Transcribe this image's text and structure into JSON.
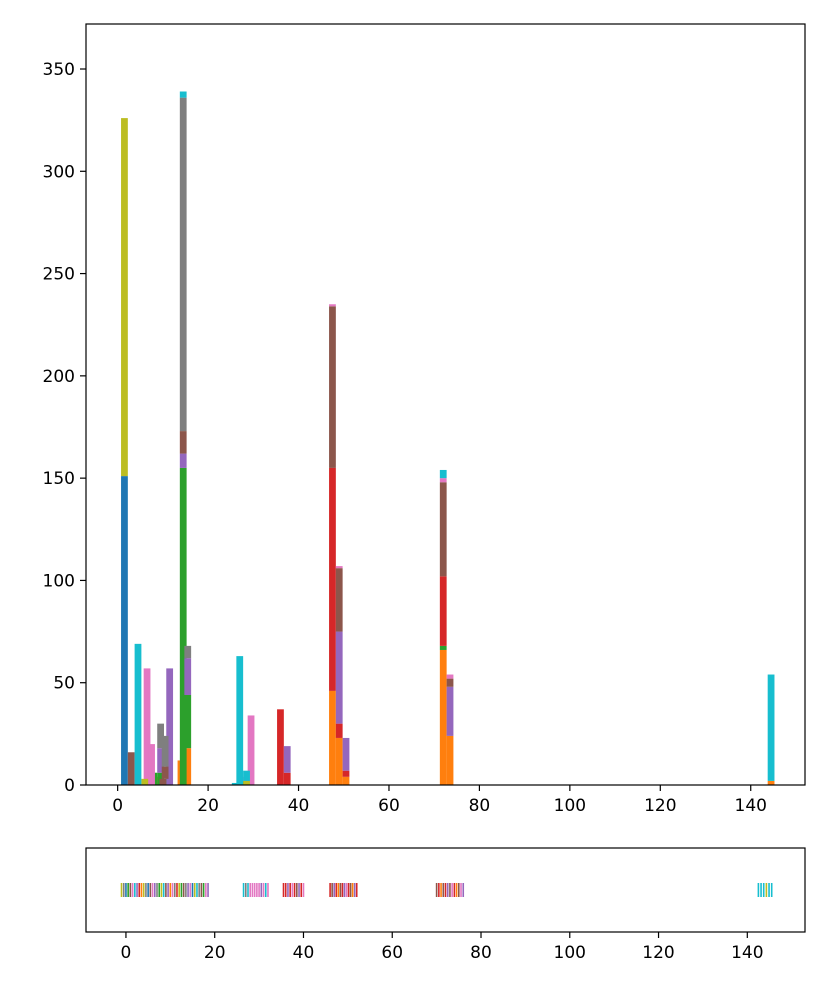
{
  "chart_data": [
    {
      "type": "bar",
      "stacked": true,
      "title": "",
      "xlabel": "",
      "ylabel": "",
      "xlim": [
        -7,
        152
      ],
      "ylim": [
        0,
        372
      ],
      "xticks": [
        0,
        20,
        40,
        60,
        80,
        100,
        120,
        140
      ],
      "yticks": [
        0,
        50,
        100,
        150,
        200,
        250,
        300,
        350
      ],
      "bar_width": 1.5,
      "series": [
        {
          "color": "#1f77b4",
          "points": [
            {
              "x": 1.5,
              "y": 151
            },
            {
              "x": 15,
              "y": 2
            }
          ]
        },
        {
          "color": "#ff7f0e",
          "points": [
            {
              "x": 9,
              "y": 4
            },
            {
              "x": 14,
              "y": 12
            },
            {
              "x": 15.5,
              "y": 18
            },
            {
              "x": 47.5,
              "y": 46
            },
            {
              "x": 49,
              "y": 23
            },
            {
              "x": 50.5,
              "y": 4
            },
            {
              "x": 72,
              "y": 66
            },
            {
              "x": 73.5,
              "y": 24
            },
            {
              "x": 144.5,
              "y": 2
            }
          ]
        },
        {
          "color": "#2ca02c",
          "points": [
            {
              "x": 8,
              "y": 6
            },
            {
              "x": 9.5,
              "y": 6
            },
            {
              "x": 10.5,
              "y": 3
            },
            {
              "x": 14.5,
              "y": 155
            },
            {
              "x": 15.5,
              "y": 26
            },
            {
              "x": 28,
              "y": 2
            },
            {
              "x": 72,
              "y": 2
            }
          ]
        },
        {
          "color": "#d62728",
          "points": [
            {
              "x": 7,
              "y": 2
            },
            {
              "x": 36,
              "y": 37
            },
            {
              "x": 37.5,
              "y": 6
            },
            {
              "x": 47.5,
              "y": 109
            },
            {
              "x": 49,
              "y": 7
            },
            {
              "x": 50.5,
              "y": 3
            },
            {
              "x": 72,
              "y": 34
            }
          ]
        },
        {
          "color": "#9467bd",
          "points": [
            {
              "x": 9.5,
              "y": 12
            },
            {
              "x": 11.5,
              "y": 57
            },
            {
              "x": 14.5,
              "y": 7
            },
            {
              "x": 15.5,
              "y": 18
            },
            {
              "x": 37.5,
              "y": 13
            },
            {
              "x": 49,
              "y": 45
            },
            {
              "x": 50.5,
              "y": 16
            },
            {
              "x": 73.5,
              "y": 24
            }
          ]
        },
        {
          "color": "#8c564b",
          "points": [
            {
              "x": 3,
              "y": 16
            },
            {
              "x": 10,
              "y": 3
            },
            {
              "x": 10.5,
              "y": 6
            },
            {
              "x": 14.5,
              "y": 11
            },
            {
              "x": 47.5,
              "y": 79
            },
            {
              "x": 49,
              "y": 31
            },
            {
              "x": 72,
              "y": 46
            },
            {
              "x": 73.5,
              "y": 4
            }
          ]
        },
        {
          "color": "#e377c2",
          "points": [
            {
              "x": 6.5,
              "y": 57
            },
            {
              "x": 7.5,
              "y": 20
            },
            {
              "x": 28,
              "y": 2
            },
            {
              "x": 29.5,
              "y": 34
            },
            {
              "x": 47.5,
              "y": 1
            },
            {
              "x": 49,
              "y": 1
            },
            {
              "x": 72,
              "y": 2
            },
            {
              "x": 73.5,
              "y": 2
            }
          ]
        },
        {
          "color": "#7f7f7f",
          "points": [
            {
              "x": 9.5,
              "y": 12
            },
            {
              "x": 10.5,
              "y": 15
            },
            {
              "x": 14.5,
              "y": 163
            },
            {
              "x": 15.5,
              "y": 6
            }
          ]
        },
        {
          "color": "#bcbd22",
          "points": [
            {
              "x": 1.5,
              "y": 175
            },
            {
              "x": 6,
              "y": 3
            },
            {
              "x": 28.5,
              "y": 2
            }
          ]
        },
        {
          "color": "#17becf",
          "points": [
            {
              "x": 4.5,
              "y": 69
            },
            {
              "x": 14.5,
              "y": 3
            },
            {
              "x": 26,
              "y": 1
            },
            {
              "x": 27,
              "y": 63
            },
            {
              "x": 28.5,
              "y": 5
            },
            {
              "x": 72,
              "y": 4
            },
            {
              "x": 144.5,
              "y": 52
            }
          ]
        }
      ]
    },
    {
      "type": "scatter",
      "marker": "vertical-tick",
      "title": "",
      "xlabel": "",
      "ylabel": "",
      "xlim": [
        -9,
        153
      ],
      "xticks": [
        0,
        20,
        40,
        60,
        80,
        100,
        120,
        140
      ],
      "clusters": [
        {
          "range": [
            -1,
            18.5
          ],
          "colors": [
            "#bcbd22",
            "#7f7f7f",
            "#1f77b4",
            "#2ca02c",
            "#8c564b",
            "#e377c2",
            "#17becf",
            "#9467bd",
            "#d62728",
            "#ff7f0e",
            "#bcbd22",
            "#7f7f7f",
            "#1f77b4",
            "#8c564b",
            "#e377c2",
            "#9467bd",
            "#7f7f7f",
            "#2ca02c",
            "#bcbd22",
            "#17becf",
            "#8c564b",
            "#9467bd",
            "#ff7f0e",
            "#e377c2",
            "#7f7f7f",
            "#d62728",
            "#bcbd22",
            "#2ca02c",
            "#8c564b",
            "#7f7f7f",
            "#9467bd",
            "#e377c2",
            "#1f77b4",
            "#bcbd22",
            "#17becf",
            "#7f7f7f",
            "#8c564b",
            "#2ca02c",
            "#e377c2",
            "#9467bd"
          ]
        },
        {
          "range": [
            26.5,
            32
          ],
          "colors": [
            "#17becf",
            "#7f7f7f",
            "#17becf",
            "#e377c2",
            "#e377c2",
            "#e377c2",
            "#e377c2",
            "#e377c2",
            "#9467bd",
            "#e377c2",
            "#17becf",
            "#e377c2"
          ]
        },
        {
          "range": [
            35.5,
            40
          ],
          "colors": [
            "#d62728",
            "#d62728",
            "#9467bd",
            "#d62728",
            "#e377c2",
            "#d62728",
            "#8c564b",
            "#9467bd",
            "#d62728",
            "#e377c2"
          ]
        },
        {
          "range": [
            46,
            52
          ],
          "colors": [
            "#d62728",
            "#8c564b",
            "#9467bd",
            "#d62728",
            "#ff7f0e",
            "#8c564b",
            "#d62728",
            "#9467bd",
            "#e377c2",
            "#d62728",
            "#8c564b",
            "#ff7f0e",
            "#9467bd",
            "#d62728"
          ]
        },
        {
          "range": [
            70,
            76
          ],
          "colors": [
            "#8c564b",
            "#d62728",
            "#ff7f0e",
            "#8c564b",
            "#d62728",
            "#9467bd",
            "#8c564b",
            "#e377c2",
            "#d62728",
            "#ff7f0e",
            "#8c564b",
            "#e377c2",
            "#9467bd"
          ]
        },
        {
          "range": [
            142.5,
            145.5
          ],
          "colors": [
            "#17becf",
            "#17becf",
            "#17becf",
            "#bcbd22",
            "#17becf",
            "#17becf"
          ]
        }
      ]
    }
  ]
}
